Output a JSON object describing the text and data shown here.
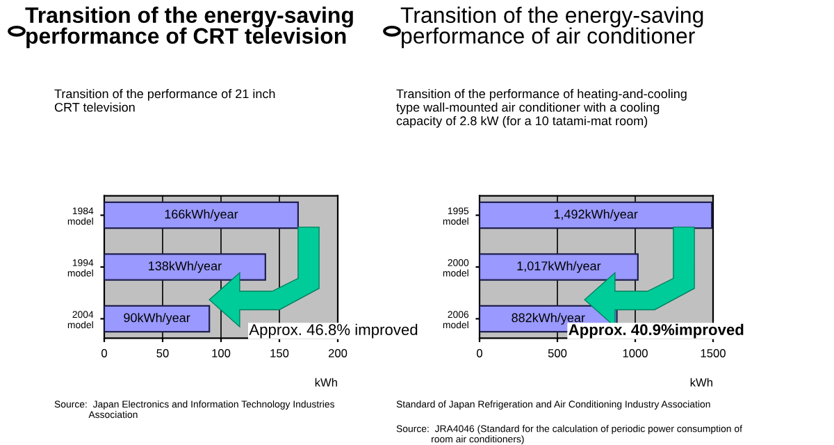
{
  "chart_data": [
    {
      "type": "bar",
      "orientation": "horizontal",
      "title": "Transition of the energy-saving\nperformance of CRT television",
      "subtitle": "Transition of the performance of 21 inch\nCRT television",
      "categories": [
        "1984\nmodel",
        "1994\nmodel",
        "2004\nmodel"
      ],
      "values": [
        166,
        138,
        90
      ],
      "value_labels": [
        "166kWh/year",
        "138kWh/year",
        "90kWh/year"
      ],
      "color": "#9999ff",
      "xlim": [
        0,
        200
      ],
      "xticks": [
        0,
        50,
        100,
        150,
        200
      ],
      "xlabel": "kWh",
      "grid": "x",
      "annotations": [
        "Approx. 46.8% improved",
        "Source:  Japan Electronics and Information Technology Industries\n             Association"
      ]
    },
    {
      "type": "bar",
      "orientation": "horizontal",
      "title": "Transition of the energy-saving\nperformance of air conditioner",
      "subtitle": "Transition of the performance of heating-and-cooling\ntype wall-mounted air conditioner with a cooling\ncapacity of 2.8 kW (for a 10 tatami-mat room)",
      "categories": [
        "1995\nmodel",
        "2000\nmodel",
        "2006\nmodel"
      ],
      "values": [
        1492,
        1017,
        882
      ],
      "value_labels": [
        "1,492kWh/year",
        "1,017kWh/year",
        "882kWh/year"
      ],
      "color": "#9999ff",
      "xlim": [
        0,
        1500
      ],
      "xticks": [
        0,
        500,
        1000,
        1500
      ],
      "xlabel": "kWh",
      "grid": "x",
      "annotations": [
        "Approx. 40.9%improved",
        "Standard of Japan Refrigeration and Air Conditioning Industry Association",
        "Source:  JRA4046 (Standard for the calculation of periodic power consumption of\n             room air conditioners)"
      ]
    }
  ]
}
